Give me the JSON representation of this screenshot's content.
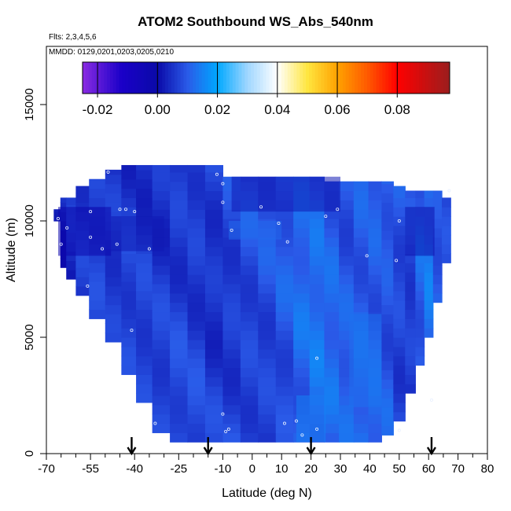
{
  "chart_data": {
    "type": "heatmap",
    "title": "ATOM2 Southbound WS_Abs_540nm",
    "annotations": [
      "Flts: 2,3,4,5,6",
      "MMDD: 0129,0201,0203,0205,0210"
    ],
    "xlabel": "Latitude (deg N)",
    "ylabel": "Altitude (m)",
    "xlim": [
      -70,
      80
    ],
    "ylim": [
      0,
      17500
    ],
    "x_ticks_major": [
      -70,
      -55,
      -40,
      -25,
      -10,
      0,
      10,
      20,
      30,
      40,
      50,
      60,
      70,
      80
    ],
    "x_ticks_minor": [
      -65,
      -60,
      -50,
      -45,
      -35,
      -30,
      -20,
      -15,
      -5,
      5,
      15,
      25,
      35,
      45,
      55,
      65,
      75
    ],
    "x_tick_labels": [
      "-70",
      "-55",
      "-40",
      "-25",
      "-10",
      "0",
      "10",
      "20",
      "30",
      "40",
      "50",
      "60",
      "70",
      "80"
    ],
    "y_ticks": [
      0,
      5000,
      10000,
      15000
    ],
    "y_tick_labels": [
      "0",
      "5000",
      "10000",
      "15000"
    ],
    "colorbar": {
      "range": [
        -0.025,
        0.0975
      ],
      "ticks": [
        -0.02,
        0.0,
        0.02,
        0.04,
        0.06,
        0.08
      ],
      "tick_labels": [
        "-0.02",
        "0.00",
        "0.02",
        "0.04",
        "0.06",
        "0.08"
      ],
      "stops": [
        {
          "v": -0.025,
          "c": "#8a2be2"
        },
        {
          "v": -0.012,
          "c": "#1a00c8"
        },
        {
          "v": 0.0,
          "c": "#0a0aa8"
        },
        {
          "v": 0.01,
          "c": "#2a5ae8"
        },
        {
          "v": 0.02,
          "c": "#00a8ff"
        },
        {
          "v": 0.03,
          "c": "#9fd6ff"
        },
        {
          "v": 0.04,
          "c": "#ffffff"
        },
        {
          "v": 0.05,
          "c": "#ffe640"
        },
        {
          "v": 0.06,
          "c": "#ffa200"
        },
        {
          "v": 0.07,
          "c": "#ff5a00"
        },
        {
          "v": 0.08,
          "c": "#ff0000"
        },
        {
          "v": 0.0975,
          "c": "#9a1e1e"
        }
      ]
    },
    "columns": [
      {
        "lat": -66.0,
        "bottom": 10000,
        "top": 10500,
        "v": 0.005
      },
      {
        "lat": -64.5,
        "bottom": 8000,
        "top": 11000,
        "v": 0.002
      },
      {
        "lat": -62.0,
        "bottom": 7500,
        "top": 11000,
        "v": 0.004
      },
      {
        "lat": -58.0,
        "bottom": 6800,
        "top": 11500,
        "v": 0.005
      },
      {
        "lat": -53.0,
        "bottom": 5800,
        "top": 11800,
        "v": 0.006
      },
      {
        "lat": -47.0,
        "bottom": 4800,
        "top": 12200,
        "v": 0.005
      },
      {
        "lat": -42.0,
        "bottom": 3400,
        "top": 12400,
        "v": 0.006
      },
      {
        "lat": -37.0,
        "bottom": 2200,
        "top": 12400,
        "v": 0.006
      },
      {
        "lat": -31.0,
        "bottom": 900,
        "top": 12400,
        "v": 0.006
      },
      {
        "lat": -25.0,
        "bottom": 500,
        "top": 12400,
        "v": 0.007
      },
      {
        "lat": -19.0,
        "bottom": 500,
        "top": 12400,
        "v": 0.007
      },
      {
        "lat": -13.0,
        "bottom": 500,
        "top": 12400,
        "v": 0.006
      },
      {
        "lat": -7.0,
        "bottom": 500,
        "top": 11900,
        "v": 0.007
      },
      {
        "lat": -1.0,
        "bottom": 500,
        "top": 11900,
        "v": 0.008
      },
      {
        "lat": 5.0,
        "bottom": 500,
        "top": 11900,
        "v": 0.008
      },
      {
        "lat": 11.0,
        "bottom": 500,
        "top": 11900,
        "v": 0.009
      },
      {
        "lat": 17.0,
        "bottom": 500,
        "top": 11900,
        "v": 0.011
      },
      {
        "lat": 22.0,
        "bottom": 500,
        "top": 11900,
        "v": 0.012
      },
      {
        "lat": 27.0,
        "bottom": 500,
        "top": 11700,
        "v": 0.011
      },
      {
        "lat": 32.0,
        "bottom": 500,
        "top": 11700,
        "v": 0.01
      },
      {
        "lat": 37.0,
        "bottom": 500,
        "top": 11700,
        "v": 0.011
      },
      {
        "lat": 42.0,
        "bottom": 500,
        "top": 11700,
        "v": 0.011
      },
      {
        "lat": 46.0,
        "bottom": 800,
        "top": 11700,
        "v": 0.01
      },
      {
        "lat": 50.0,
        "bottom": 1400,
        "top": 11500,
        "v": 0.008
      },
      {
        "lat": 54.0,
        "bottom": 2600,
        "top": 11300,
        "v": 0.007
      },
      {
        "lat": 57.0,
        "bottom": 3800,
        "top": 11300,
        "v": 0.01
      },
      {
        "lat": 60.0,
        "bottom": 5000,
        "top": 11300,
        "v": 0.012
      },
      {
        "lat": 63.0,
        "bottom": 6500,
        "top": 11300,
        "v": 0.009
      },
      {
        "lat": 66.0,
        "bottom": 8200,
        "top": 11000,
        "v": 0.008
      }
    ],
    "patches": [
      {
        "lat0": -66.0,
        "lat1": -48.0,
        "alt0": 8500,
        "alt1": 10600,
        "v": -0.002
      },
      {
        "lat0": -48.0,
        "lat1": -30.0,
        "alt0": 8700,
        "alt1": 10200,
        "v": 0.002
      },
      {
        "lat0": -7.0,
        "lat1": 30.0,
        "alt0": 10400,
        "alt1": 11900,
        "v": 0.002
      },
      {
        "lat0": 52.0,
        "lat1": 62.0,
        "alt0": 8500,
        "alt1": 10600,
        "v": 0.001
      },
      {
        "lat0": 15.0,
        "lat1": 25.0,
        "alt0": 500,
        "alt1": 2500,
        "v": 0.015
      },
      {
        "lat0": 33.0,
        "lat1": 44.0,
        "alt0": 2000,
        "alt1": 6000,
        "v": 0.013
      },
      {
        "lat0": -8.0,
        "lat1": 10.0,
        "alt0": 9200,
        "alt1": 10000,
        "v": 0.012
      }
    ],
    "points": [
      {
        "lat": -66,
        "alt": 10100
      },
      {
        "lat": -65,
        "alt": 9000
      },
      {
        "lat": -63,
        "alt": 9700
      },
      {
        "lat": -55,
        "alt": 10400
      },
      {
        "lat": -55,
        "alt": 9300
      },
      {
        "lat": -51,
        "alt": 8800
      },
      {
        "lat": -56,
        "alt": 7200
      },
      {
        "lat": -45,
        "alt": 10500
      },
      {
        "lat": -43,
        "alt": 10500
      },
      {
        "lat": -46,
        "alt": 9000
      },
      {
        "lat": -40,
        "alt": 10400
      },
      {
        "lat": -35,
        "alt": 8800
      },
      {
        "lat": -49,
        "alt": 12100
      },
      {
        "lat": -41,
        "alt": 5300
      },
      {
        "lat": -33,
        "alt": 1300
      },
      {
        "lat": -12,
        "alt": 12000
      },
      {
        "lat": -10,
        "alt": 11600
      },
      {
        "lat": -10,
        "alt": 10800
      },
      {
        "lat": -7,
        "alt": 9600
      },
      {
        "lat": 3,
        "alt": 10600
      },
      {
        "lat": 9,
        "alt": 9900
      },
      {
        "lat": 12,
        "alt": 9100
      },
      {
        "lat": 25,
        "alt": 10200
      },
      {
        "lat": 29,
        "alt": 10500
      },
      {
        "lat": 39,
        "alt": 8500
      },
      {
        "lat": 50,
        "alt": 10000
      },
      {
        "lat": 49,
        "alt": 8300
      },
      {
        "lat": 67,
        "alt": 11300
      },
      {
        "lat": 61,
        "alt": 2300
      },
      {
        "lat": 22,
        "alt": 4100
      },
      {
        "lat": -10,
        "alt": 1700
      },
      {
        "lat": -9,
        "alt": 950
      },
      {
        "lat": -8,
        "alt": 1050
      },
      {
        "lat": 15,
        "alt": 1400
      },
      {
        "lat": 11,
        "alt": 1300
      },
      {
        "lat": 17,
        "alt": 800
      },
      {
        "lat": 22,
        "alt": 1050
      },
      {
        "lat": 50,
        "alt": 1000
      }
    ],
    "arrows_lat": [
      -41,
      -15,
      20,
      61
    ]
  }
}
